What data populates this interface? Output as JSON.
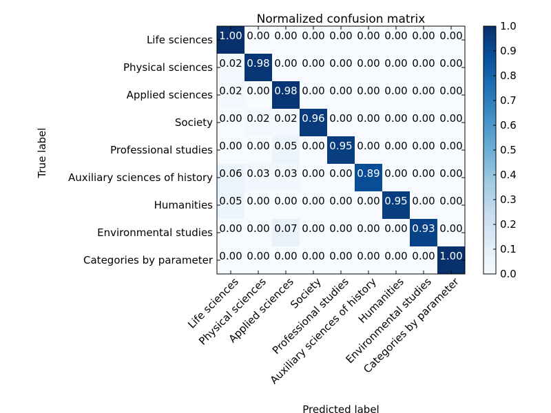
{
  "chart_data": {
    "type": "heatmap",
    "title": "Normalized confusion matrix",
    "xlabel": "Predicted label",
    "ylabel": "True label",
    "labels": [
      "Life sciences",
      "Physical sciences",
      "Applied sciences",
      "Society",
      "Professional studies",
      "Auxiliary sciences of history",
      "Humanities",
      "Environmental studies",
      "Categories by parameter"
    ],
    "matrix": [
      [
        1.0,
        0.0,
        0.0,
        0.0,
        0.0,
        0.0,
        0.0,
        0.0,
        0.0
      ],
      [
        0.02,
        0.98,
        0.0,
        0.0,
        0.0,
        0.0,
        0.0,
        0.0,
        0.0
      ],
      [
        0.02,
        0.0,
        0.98,
        0.0,
        0.0,
        0.0,
        0.0,
        0.0,
        0.0
      ],
      [
        0.0,
        0.02,
        0.02,
        0.96,
        0.0,
        0.0,
        0.0,
        0.0,
        0.0
      ],
      [
        0.0,
        0.0,
        0.05,
        0.0,
        0.95,
        0.0,
        0.0,
        0.0,
        0.0
      ],
      [
        0.06,
        0.03,
        0.03,
        0.0,
        0.0,
        0.89,
        0.0,
        0.0,
        0.0
      ],
      [
        0.05,
        0.0,
        0.0,
        0.0,
        0.0,
        0.0,
        0.95,
        0.0,
        0.0
      ],
      [
        0.0,
        0.0,
        0.07,
        0.0,
        0.0,
        0.0,
        0.0,
        0.93,
        0.0
      ],
      [
        0.0,
        0.0,
        0.0,
        0.0,
        0.0,
        0.0,
        0.0,
        0.0,
        1.0
      ]
    ],
    "colormap": "Blues",
    "colorbar": {
      "range": [
        0.0,
        1.0
      ],
      "ticks": [
        "0.0",
        "0.1",
        "0.2",
        "0.3",
        "0.4",
        "0.5",
        "0.6",
        "0.7",
        "0.8",
        "0.9",
        "1.0"
      ]
    },
    "grid": false
  }
}
